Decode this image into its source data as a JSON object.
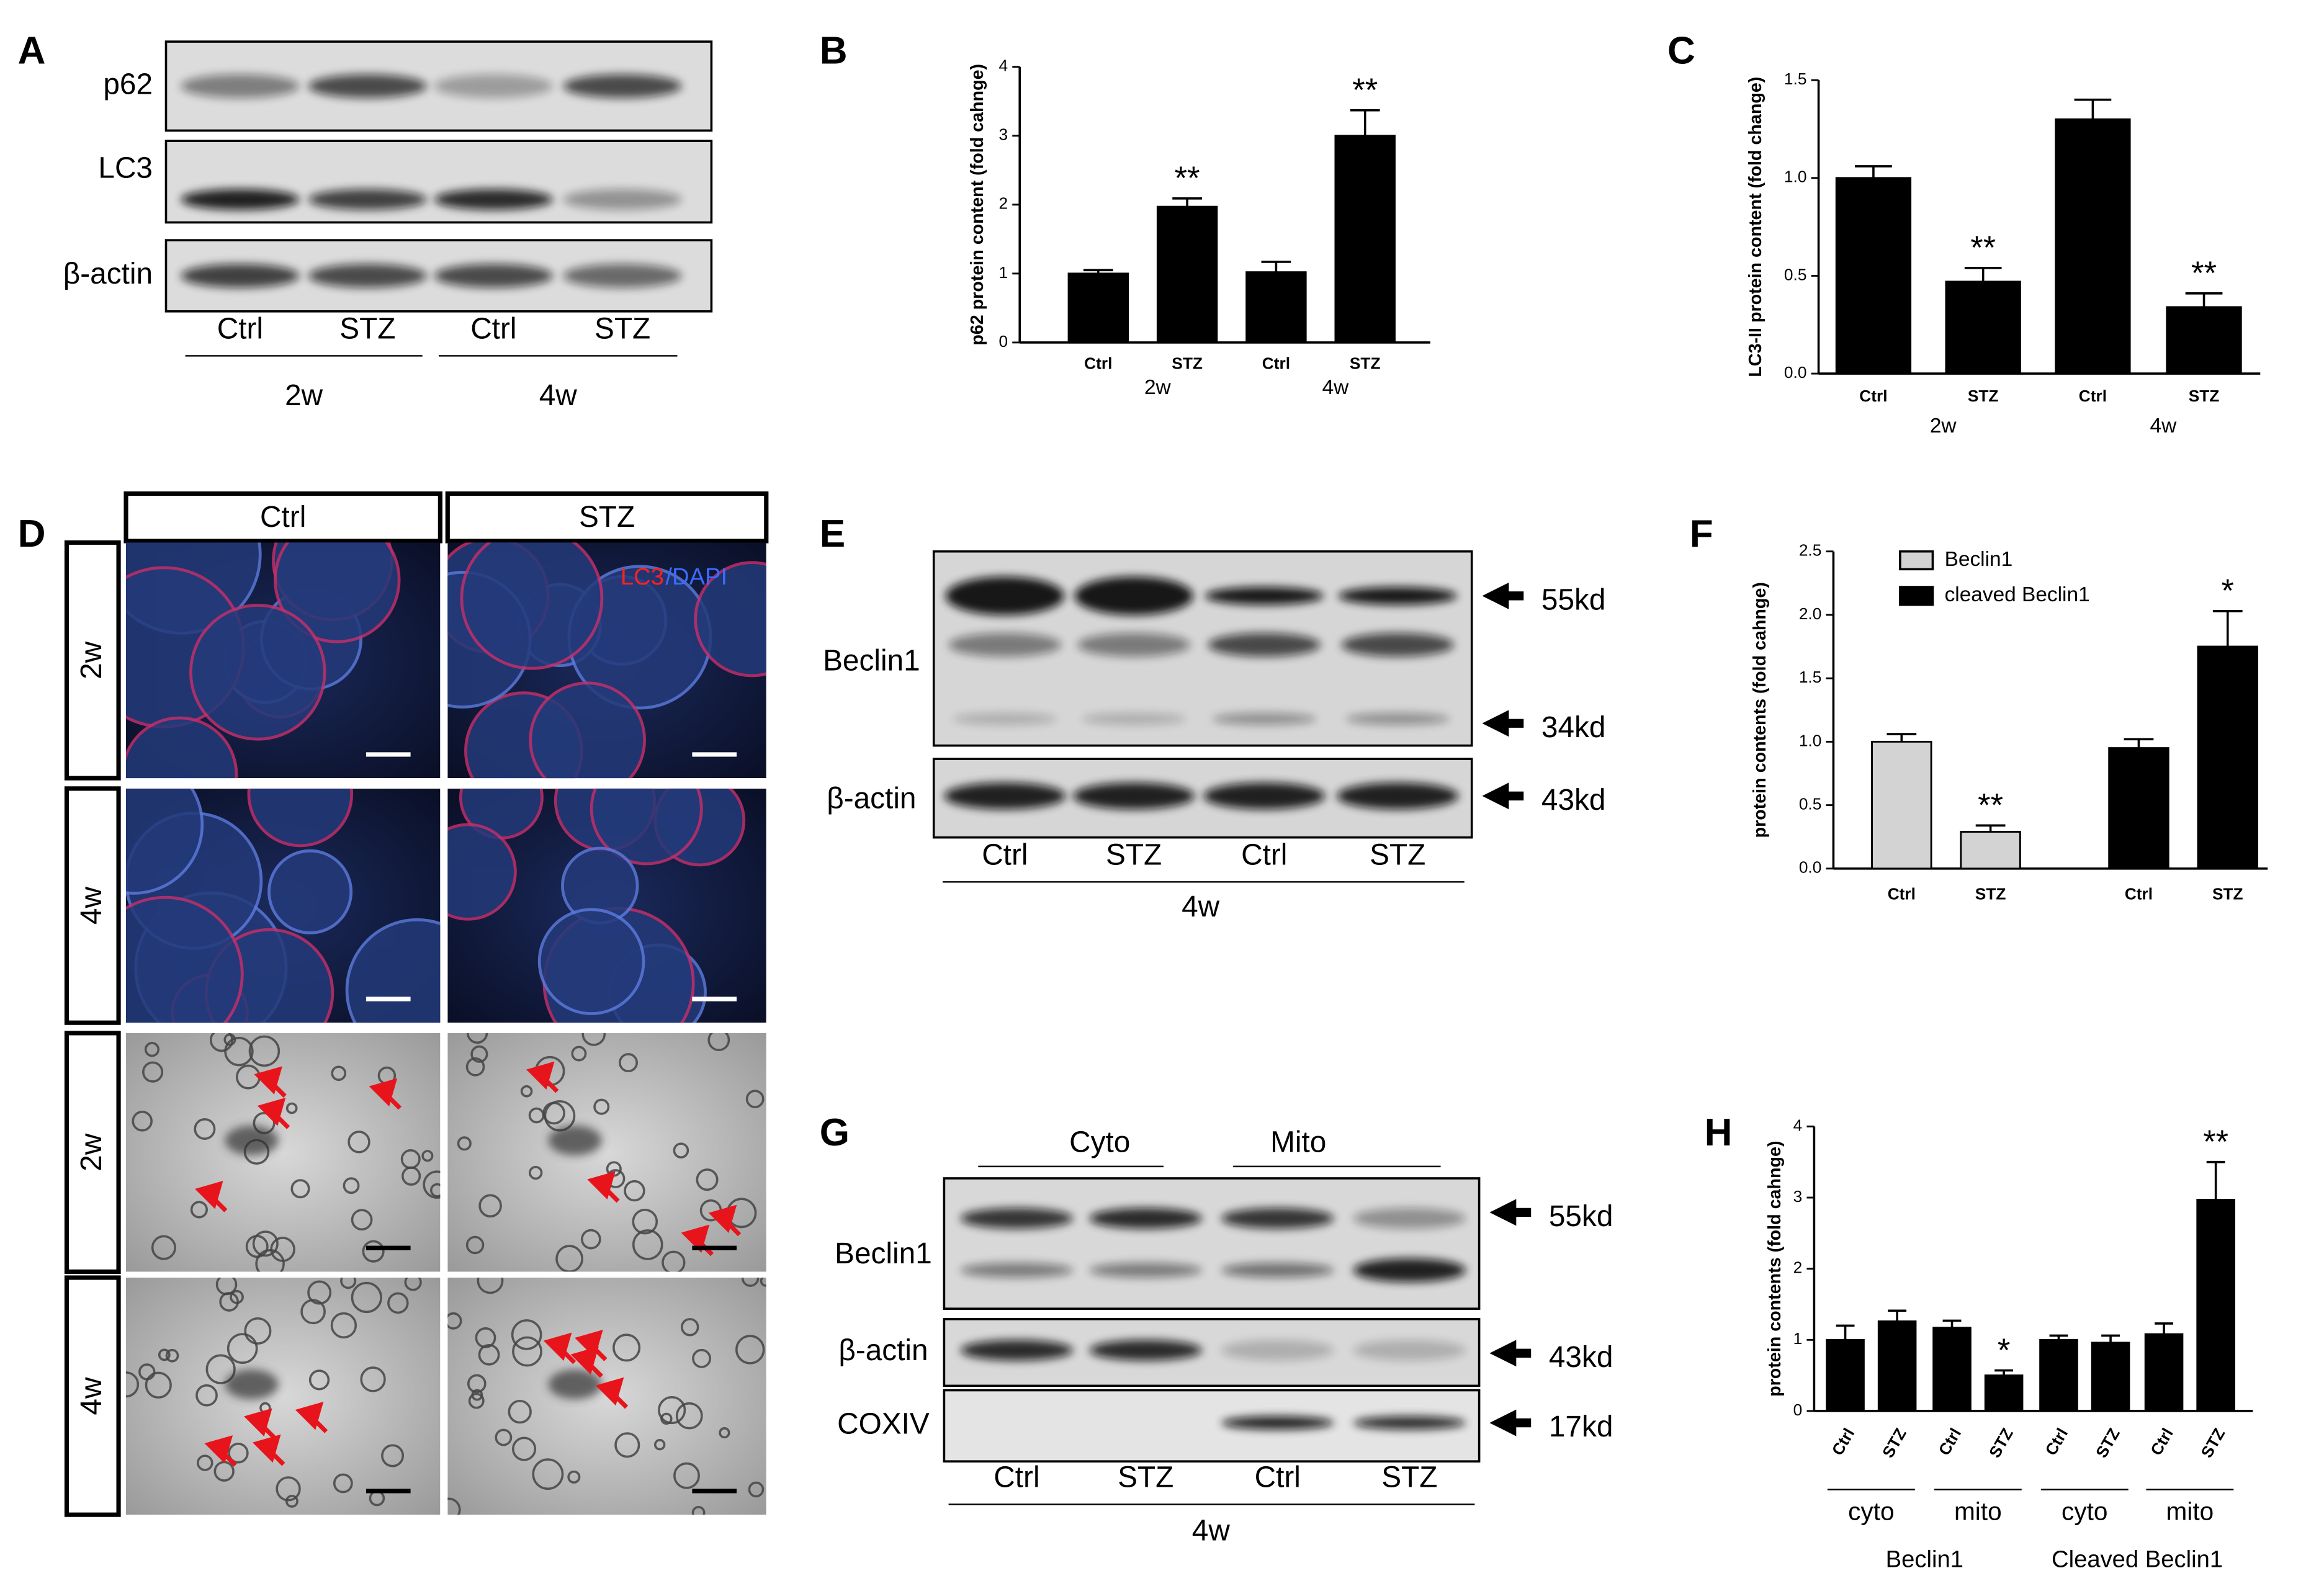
{
  "panel_labels": [
    "A",
    "B",
    "C",
    "D",
    "E",
    "F",
    "G",
    "H"
  ],
  "blot_a": {
    "rows": [
      "p62",
      "LC3",
      "β-actin"
    ],
    "lanes": [
      "Ctrl",
      "STZ",
      "Ctrl",
      "STZ"
    ],
    "groups": [
      "2w",
      "4w"
    ]
  },
  "imaging_d": {
    "columns": [
      "Ctrl",
      "STZ"
    ],
    "rows": [
      "2w",
      "4w",
      "2w",
      "4w"
    ],
    "stain": [
      "LC3",
      "/DAPI"
    ]
  },
  "blot_e": {
    "rows": [
      "Beclin1",
      "β-actin"
    ],
    "markers": [
      "55kd",
      "34kd",
      "43kd"
    ],
    "lanes": [
      "Ctrl",
      "STZ",
      "Ctrl",
      "STZ"
    ],
    "group": "4w"
  },
  "blot_g": {
    "fractions": [
      "Cyto",
      "Mito"
    ],
    "rows": [
      "Beclin1",
      "β-actin",
      "COXIV"
    ],
    "markers": [
      "55kd",
      "43kd",
      "17kd"
    ],
    "lanes": [
      "Ctrl",
      "STZ",
      "Ctrl",
      "STZ"
    ],
    "group": "4w"
  },
  "chart_data": [
    {
      "type": "bar",
      "y_label": "p62 protein content (fold cahnge)",
      "categories": [
        "Ctrl",
        "STZ",
        "Ctrl",
        "STZ"
      ],
      "groups": [
        "2w",
        "4w"
      ],
      "values": [
        1.0,
        1.97,
        1.02,
        3.0
      ],
      "errors": [
        0.05,
        0.12,
        0.15,
        0.37
      ],
      "significance": [
        null,
        "**",
        null,
        "**"
      ],
      "color": "#000000",
      "ylim": [
        0,
        4
      ],
      "yticks": [
        0,
        1,
        2,
        3,
        4
      ]
    },
    {
      "type": "bar",
      "y_label": "LC3-II protein content (fold change)",
      "categories": [
        "Ctrl",
        "STZ",
        "Ctrl",
        "STZ"
      ],
      "groups": [
        "2w",
        "4w"
      ],
      "values": [
        1.0,
        0.47,
        1.3,
        0.34
      ],
      "errors": [
        0.06,
        0.07,
        0.1,
        0.07
      ],
      "significance": [
        null,
        "**",
        null,
        "**"
      ],
      "color": "#000000",
      "ylim": [
        0,
        1.5
      ],
      "yticks": [
        {
          "value": 0,
          "label": "0.0"
        },
        {
          "value": 0.5,
          "label": "0.5"
        },
        {
          "value": 1,
          "label": "1.0"
        },
        {
          "value": 1.5,
          "label": "1.5"
        }
      ]
    },
    {
      "type": "bar",
      "y_label": "protein contents (fold cahnge)",
      "categories": [
        "Ctrl",
        "STZ"
      ],
      "series": [
        {
          "name": "Beclin1",
          "color": "#d3d3d3",
          "values": [
            1.0,
            0.29
          ],
          "errors": [
            0.06,
            0.05
          ],
          "significance": [
            null,
            "**"
          ]
        },
        {
          "name": "cleaved Beclin1",
          "color": "#000000",
          "values": [
            0.95,
            1.75
          ],
          "errors": [
            0.07,
            0.28
          ],
          "significance": [
            null,
            "*"
          ]
        }
      ],
      "ylim": [
        0,
        2.5
      ],
      "legend": "upper-left",
      "yticks": [
        {
          "value": 0,
          "label": "0.0"
        },
        {
          "value": 0.5,
          "label": "0.5"
        },
        {
          "value": 1,
          "label": "1.0"
        },
        {
          "value": 1.5,
          "label": "1.5"
        },
        {
          "value": 2,
          "label": "2.0"
        },
        {
          "value": 2.5,
          "label": "2.5"
        }
      ]
    },
    {
      "type": "bar",
      "y_label": "protein contents (fold cahnge)",
      "categories": [
        "Ctrl",
        "STZ",
        "Ctrl",
        "STZ",
        "Ctrl",
        "STZ",
        "Ctrl",
        "STZ"
      ],
      "subgroups": [
        "cyto",
        "mito",
        "cyto",
        "mito"
      ],
      "groups": [
        "Beclin1",
        "Cleaved Beclin1"
      ],
      "values": [
        1.0,
        1.26,
        1.17,
        0.5,
        1.0,
        0.96,
        1.08,
        2.97
      ],
      "errors": [
        0.2,
        0.15,
        0.1,
        0.07,
        0.06,
        0.1,
        0.15,
        0.53
      ],
      "significance": [
        null,
        null,
        null,
        "*",
        null,
        null,
        null,
        "**"
      ],
      "color": "#000000",
      "ylim": [
        0,
        4
      ],
      "yticks": [
        0,
        1,
        2,
        3,
        4
      ]
    }
  ]
}
